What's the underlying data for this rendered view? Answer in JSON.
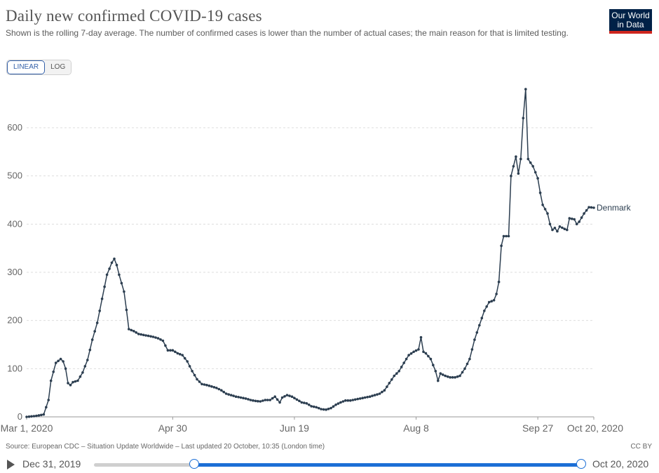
{
  "header": {
    "title": "Daily new confirmed COVID-19 cases",
    "subtitle": "Shown is the rolling 7-day average. The number of confirmed cases is lower than the number of actual cases; the main reason for that is limited testing.",
    "logo_line1": "Our World",
    "logo_line2": "in Data"
  },
  "controls": {
    "linear_label": "LINEAR",
    "log_label": "LOG"
  },
  "footer": {
    "source": "Source: European CDC – Situation Update Worldwide – Last updated 20 October, 10:35 (London time)",
    "license": "CC BY"
  },
  "timeline": {
    "start_label": "Dec 31, 2019",
    "end_label": "Oct 20, 2020"
  },
  "colors": {
    "series": "#2c3e50",
    "grid": "#dddddd",
    "accent": "#1c6fd6",
    "logo_bg": "#002147",
    "logo_bar": "#ce261e"
  },
  "chart_data": {
    "type": "line",
    "title": "Daily new confirmed COVID-19 cases",
    "xlabel": "",
    "ylabel": "",
    "ylim": [
      0,
      690
    ],
    "yticks": [
      0,
      100,
      200,
      300,
      400,
      500,
      600
    ],
    "xtick_labels": [
      {
        "day": 0,
        "label": "Mar 1, 2020"
      },
      {
        "day": 60,
        "label": "Apr 30"
      },
      {
        "day": 110,
        "label": "Jun 19"
      },
      {
        "day": 160,
        "label": "Aug 8"
      },
      {
        "day": 210,
        "label": "Sep 27"
      },
      {
        "day": 233,
        "label": "Oct 20, 2020"
      }
    ],
    "series": [
      {
        "name": "Denmark",
        "x_start_date": "2020-03-01",
        "anchors": [
          [
            0,
            0
          ],
          [
            4,
            2
          ],
          [
            7,
            5
          ],
          [
            9,
            35
          ],
          [
            10,
            75
          ],
          [
            12,
            112
          ],
          [
            14,
            120
          ],
          [
            15,
            115
          ],
          [
            16,
            100
          ],
          [
            17,
            70
          ],
          [
            18,
            66
          ],
          [
            19,
            72
          ],
          [
            21,
            75
          ],
          [
            23,
            92
          ],
          [
            25,
            118
          ],
          [
            27,
            160
          ],
          [
            29,
            195
          ],
          [
            31,
            245
          ],
          [
            33,
            295
          ],
          [
            35,
            320
          ],
          [
            36,
            328
          ],
          [
            37,
            315
          ],
          [
            38,
            295
          ],
          [
            40,
            260
          ],
          [
            41,
            222
          ],
          [
            42,
            182
          ],
          [
            44,
            178
          ],
          [
            46,
            172
          ],
          [
            48,
            170
          ],
          [
            50,
            168
          ],
          [
            52,
            166
          ],
          [
            54,
            163
          ],
          [
            56,
            158
          ],
          [
            58,
            138
          ],
          [
            60,
            138
          ],
          [
            62,
            132
          ],
          [
            64,
            128
          ],
          [
            66,
            115
          ],
          [
            68,
            95
          ],
          [
            70,
            78
          ],
          [
            72,
            68
          ],
          [
            74,
            66
          ],
          [
            76,
            63
          ],
          [
            78,
            60
          ],
          [
            80,
            55
          ],
          [
            82,
            48
          ],
          [
            84,
            45
          ],
          [
            86,
            42
          ],
          [
            88,
            40
          ],
          [
            90,
            38
          ],
          [
            92,
            35
          ],
          [
            94,
            33
          ],
          [
            96,
            32
          ],
          [
            98,
            35
          ],
          [
            100,
            35
          ],
          [
            102,
            42
          ],
          [
            104,
            30
          ],
          [
            105,
            40
          ],
          [
            107,
            45
          ],
          [
            109,
            42
          ],
          [
            111,
            36
          ],
          [
            113,
            30
          ],
          [
            115,
            28
          ],
          [
            117,
            22
          ],
          [
            119,
            20
          ],
          [
            121,
            16
          ],
          [
            123,
            15
          ],
          [
            125,
            18
          ],
          [
            127,
            25
          ],
          [
            129,
            30
          ],
          [
            131,
            34
          ],
          [
            133,
            34
          ],
          [
            135,
            36
          ],
          [
            137,
            38
          ],
          [
            139,
            40
          ],
          [
            141,
            42
          ],
          [
            143,
            45
          ],
          [
            145,
            48
          ],
          [
            147,
            55
          ],
          [
            149,
            70
          ],
          [
            151,
            85
          ],
          [
            153,
            95
          ],
          [
            155,
            112
          ],
          [
            157,
            128
          ],
          [
            159,
            135
          ],
          [
            161,
            140
          ],
          [
            162,
            165
          ],
          [
            163,
            135
          ],
          [
            164,
            132
          ],
          [
            166,
            120
          ],
          [
            168,
            95
          ],
          [
            169,
            75
          ],
          [
            170,
            90
          ],
          [
            172,
            85
          ],
          [
            174,
            82
          ],
          [
            176,
            82
          ],
          [
            178,
            85
          ],
          [
            180,
            100
          ],
          [
            182,
            120
          ],
          [
            184,
            160
          ],
          [
            186,
            190
          ],
          [
            188,
            220
          ],
          [
            190,
            238
          ],
          [
            192,
            242
          ],
          [
            193,
            255
          ],
          [
            194,
            280
          ],
          [
            195,
            355
          ],
          [
            196,
            375
          ],
          [
            198,
            375
          ],
          [
            199,
            500
          ],
          [
            201,
            540
          ],
          [
            202,
            505
          ],
          [
            203,
            535
          ],
          [
            204,
            620
          ],
          [
            205,
            680
          ],
          [
            206,
            535
          ],
          [
            208,
            520
          ],
          [
            210,
            495
          ],
          [
            211,
            465
          ],
          [
            212,
            440
          ],
          [
            214,
            422
          ],
          [
            215,
            400
          ],
          [
            216,
            388
          ],
          [
            217,
            392
          ],
          [
            218,
            385
          ],
          [
            219,
            395
          ],
          [
            221,
            390
          ],
          [
            222,
            388
          ],
          [
            223,
            412
          ],
          [
            225,
            410
          ],
          [
            226,
            400
          ],
          [
            227,
            405
          ],
          [
            229,
            422
          ],
          [
            231,
            435
          ],
          [
            233,
            434
          ]
        ]
      }
    ]
  }
}
